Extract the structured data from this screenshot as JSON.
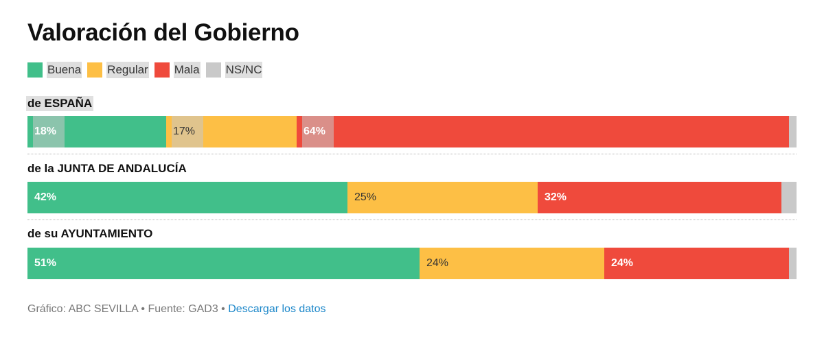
{
  "title": "Valoración del Gobierno",
  "legend": [
    {
      "label": "Buena",
      "color": "#41bf8a"
    },
    {
      "label": "Regular",
      "color": "#fdbf45"
    },
    {
      "label": "Mala",
      "color": "#ef4a3c"
    },
    {
      "label": "NS/NC",
      "color": "#c9c9c9"
    }
  ],
  "chart_data": {
    "type": "bar",
    "orientation": "horizontal-stacked-100",
    "title": "Valoración del Gobierno",
    "categories": [
      "de ESPAÑA",
      "de la JUNTA DE ANDALUCÍA",
      "de su AYUNTAMIENTO"
    ],
    "series": [
      {
        "name": "Buena",
        "values": [
          18,
          42,
          51
        ],
        "labels": [
          "18%",
          "42%",
          "51%"
        ]
      },
      {
        "name": "Regular",
        "values": [
          17,
          25,
          24
        ],
        "labels": [
          "17%",
          "25%",
          "24%"
        ]
      },
      {
        "name": "Mala",
        "values": [
          64,
          32,
          24
        ],
        "labels": [
          "64%",
          "32%",
          "24%"
        ]
      },
      {
        "name": "NS/NC",
        "values": [
          1,
          2,
          1
        ],
        "labels": [
          "",
          "",
          ""
        ]
      }
    ],
    "xlim": [
      0,
      100
    ]
  },
  "footer": {
    "text": "Gráfico: ABC SEVILLA • Fuente: GAD3 •",
    "link": "Descargar los datos"
  }
}
